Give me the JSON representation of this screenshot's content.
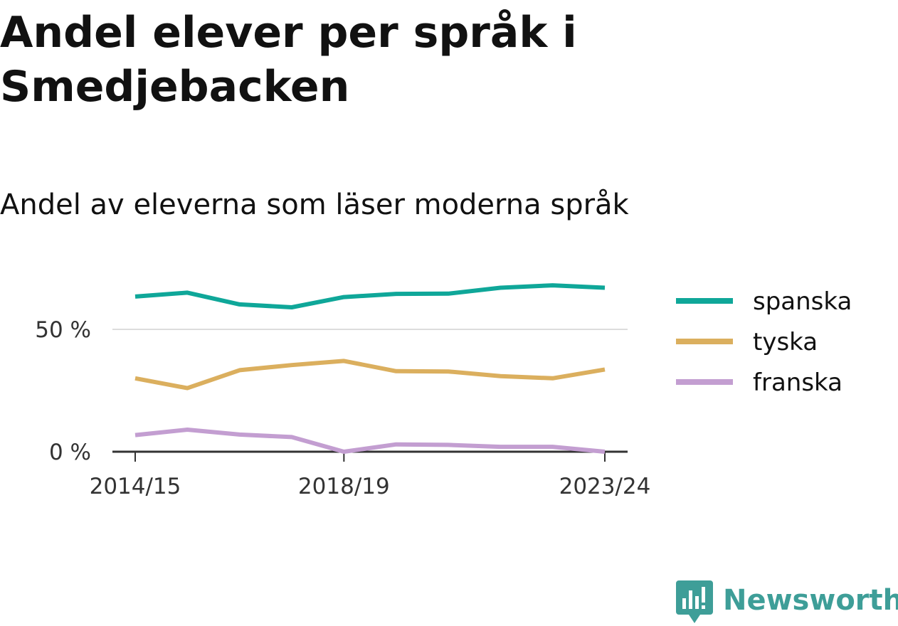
{
  "title": "Andel elever per språk i Smedjebacken",
  "subtitle": "Andel av eleverna som läser moderna språk",
  "brand": {
    "name": "Newsworthy",
    "color": "#3e9e98",
    "icon": "newsworthy-logo-icon"
  },
  "chart_data": {
    "type": "line",
    "x": [
      "2014/15",
      "2015/16",
      "2016/17",
      "2017/18",
      "2018/19",
      "2019/20",
      "2020/21",
      "2021/22",
      "2022/23",
      "2023/24"
    ],
    "x_tick_labels": [
      "2014/15",
      "2018/19",
      "2023/24"
    ],
    "y_ticks": [
      {
        "value": 0,
        "label": "0 %"
      },
      {
        "value": 50,
        "label": "50 %"
      }
    ],
    "ylim": [
      0,
      72
    ],
    "grid": true,
    "legend_position": "right",
    "series": [
      {
        "name": "spanska",
        "color": "#0fa799",
        "values": [
          63.4,
          65.0,
          60.2,
          59.0,
          63.2,
          64.5,
          64.6,
          67.0,
          68.0,
          67.0
        ]
      },
      {
        "name": "tyska",
        "color": "#dbaf5e",
        "values": [
          30.0,
          26.0,
          33.3,
          35.4,
          37.1,
          32.9,
          32.8,
          30.9,
          30.0,
          33.6
        ]
      },
      {
        "name": "franska",
        "color": "#c39ed1",
        "values": [
          6.8,
          9.0,
          7.0,
          6.0,
          0.0,
          3.0,
          2.8,
          2.0,
          2.0,
          0.0
        ]
      }
    ]
  }
}
